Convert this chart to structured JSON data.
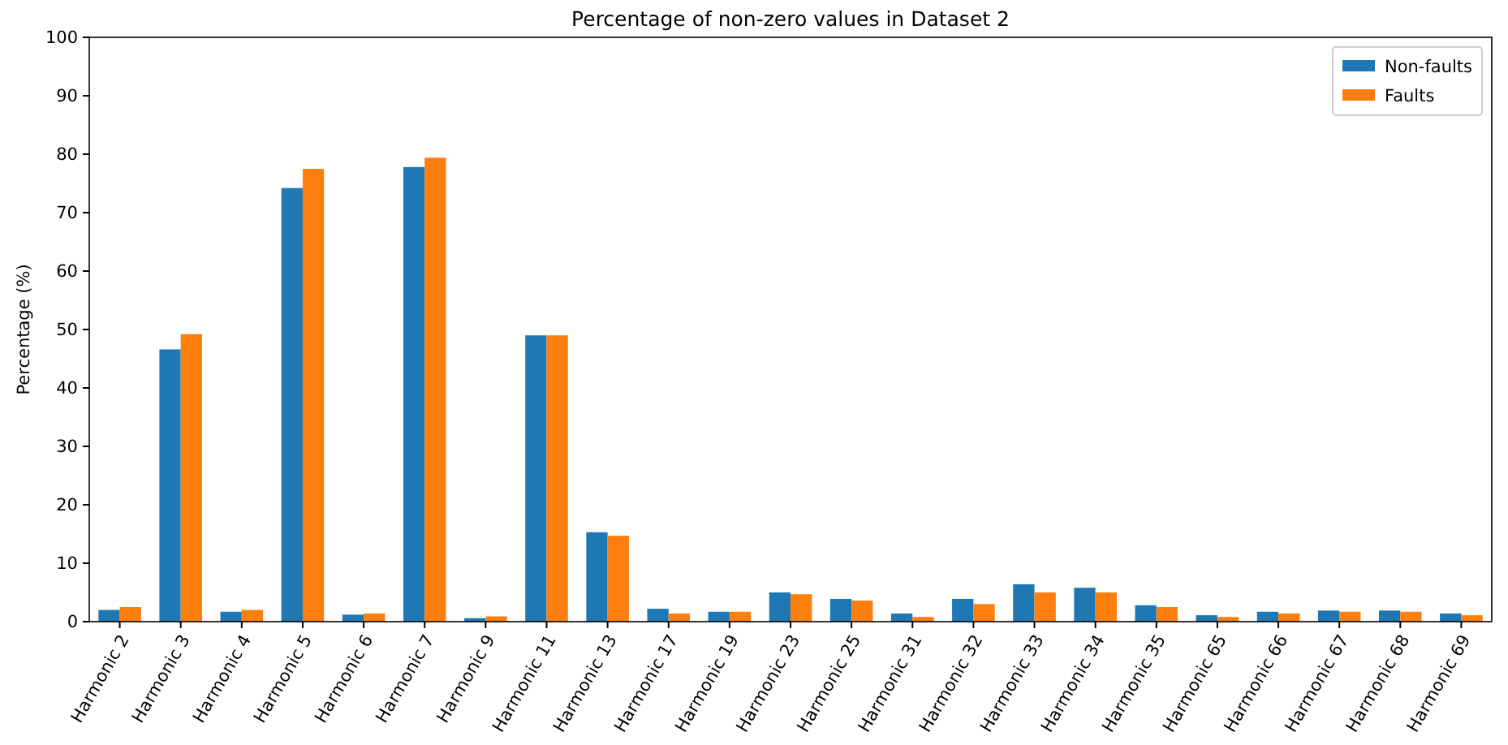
{
  "chart_data": {
    "type": "bar",
    "title": "Percentage of non-zero values in Dataset 2",
    "ylabel": "Percentage (%)",
    "categories": [
      "Harmonic 2",
      "Harmonic 3",
      "Harmonic 4",
      "Harmonic 5",
      "Harmonic 6",
      "Harmonic 7",
      "Harmonic 9",
      "Harmonic 11",
      "Harmonic 13",
      "Harmonic 17",
      "Harmonic 19",
      "Harmonic 23",
      "Harmonic 25",
      "Harmonic 31",
      "Harmonic 32",
      "Harmonic 33",
      "Harmonic 34",
      "Harmonic 35",
      "Harmonic 65",
      "Harmonic 66",
      "Harmonic 67",
      "Harmonic 68",
      "Harmonic 69"
    ],
    "series": [
      {
        "name": "Non-faults",
        "color": "#1f77b4",
        "values": [
          2.0,
          46.6,
          1.7,
          74.2,
          1.2,
          77.8,
          0.6,
          49.0,
          15.3,
          2.2,
          1.7,
          5.0,
          3.9,
          1.4,
          3.9,
          6.4,
          5.8,
          2.8,
          1.1,
          1.7,
          1.9,
          1.9,
          1.4
        ]
      },
      {
        "name": "Faults",
        "color": "#ff7f0e",
        "values": [
          2.5,
          49.2,
          2.0,
          77.5,
          1.4,
          79.4,
          0.9,
          49.0,
          14.7,
          1.4,
          1.7,
          4.7,
          3.6,
          0.8,
          3.0,
          5.0,
          5.0,
          2.5,
          0.8,
          1.4,
          1.7,
          1.7,
          1.1
        ]
      }
    ],
    "ylim": [
      0,
      100
    ],
    "yticks": [
      0,
      10,
      20,
      30,
      40,
      50,
      60,
      70,
      80,
      90,
      100
    ],
    "legend": "top right"
  }
}
